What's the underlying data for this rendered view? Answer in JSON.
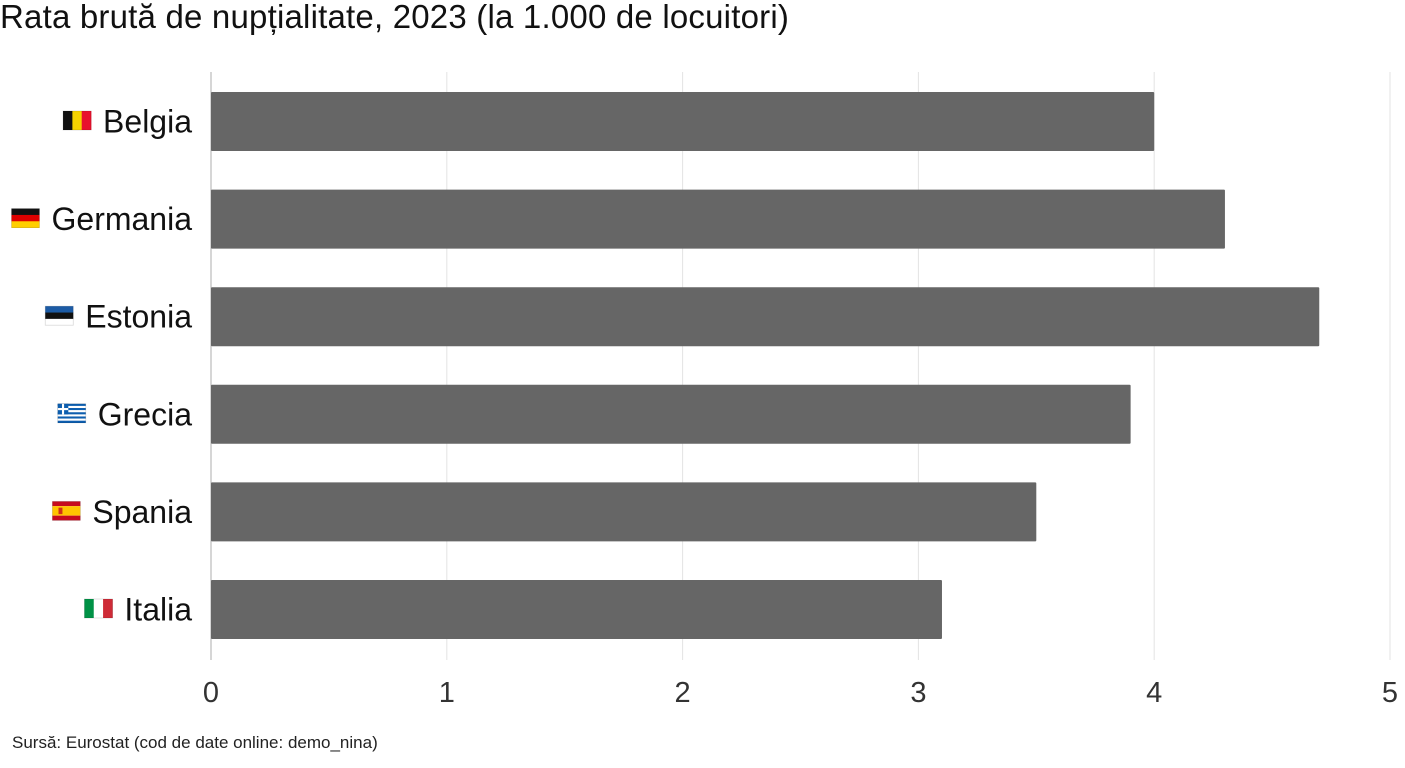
{
  "chart_data": {
    "type": "bar",
    "orientation": "horizontal",
    "title": "Rata brută de nupțialitate, 2023 (la 1.000 de locuitori)",
    "xlabel": "",
    "ylabel": "",
    "categories": [
      "Belgia",
      "Germania",
      "Estonia",
      "Grecia",
      "Spania",
      "Italia"
    ],
    "values": [
      4.0,
      4.3,
      4.7,
      3.9,
      3.5,
      3.1
    ],
    "xlim": [
      0,
      5
    ],
    "xticks": [
      0,
      1,
      2,
      3,
      4,
      5
    ],
    "grid": true,
    "legend": "none",
    "bar_color": "#666666",
    "grid_color": "#e3e3e3",
    "flags": [
      {
        "category": "Belgia",
        "icon": "flag-belgium-icon",
        "stripes": "vertical",
        "colors": [
          "#111111",
          "#f5d300",
          "#e8112d"
        ]
      },
      {
        "category": "Germania",
        "icon": "flag-germany-icon",
        "stripes": "horizontal",
        "colors": [
          "#111111",
          "#dd0000",
          "#ffce00"
        ]
      },
      {
        "category": "Estonia",
        "icon": "flag-estonia-icon",
        "stripes": "horizontal",
        "colors": [
          "#1c5ba5",
          "#111111",
          "#ffffff"
        ]
      },
      {
        "category": "Grecia",
        "icon": "flag-greece-icon",
        "stripes": "greek",
        "colors": [
          "#0d5eaf",
          "#ffffff"
        ]
      },
      {
        "category": "Spania",
        "icon": "flag-spain-icon",
        "stripes": "spain",
        "colors": [
          "#c60b1e",
          "#ffc400"
        ]
      },
      {
        "category": "Italia",
        "icon": "flag-italy-icon",
        "stripes": "vertical",
        "colors": [
          "#009246",
          "#ffffff",
          "#ce2b37"
        ]
      }
    ]
  },
  "source": "Sursă: Eurostat (cod de date online: demo_nina)"
}
